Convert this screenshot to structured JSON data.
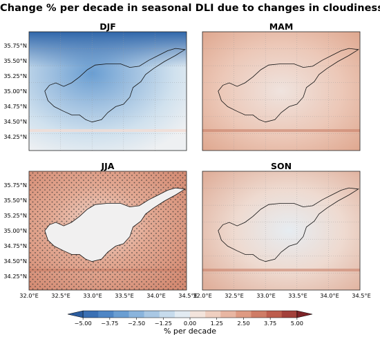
{
  "title": "Change % per decade in seasonal DLI due to changes in cloudiness",
  "panels": [
    {
      "title": "DJF",
      "col": 0,
      "row": 0,
      "tone": "blue",
      "stippled": false
    },
    {
      "title": "MAM",
      "col": 1,
      "row": 0,
      "tone": "red",
      "stippled": false
    },
    {
      "title": "JJA",
      "col": 0,
      "row": 1,
      "tone": "red-strong",
      "stippled": true
    },
    {
      "title": "SON",
      "col": 1,
      "row": 1,
      "tone": "red-mixed",
      "stippled": false
    }
  ],
  "lat_labels": [
    "35.75°N",
    "35.50°N",
    "35.25°N",
    "35.00°N",
    "34.75°N",
    "34.50°N",
    "34.25°N"
  ],
  "lon_labels": [
    "32.0°E",
    "32.5°E",
    "33.0°E",
    "33.5°E",
    "34.0°E",
    "34.5°E"
  ],
  "colorbar": {
    "ticks": [
      "−5.00",
      "−3.75",
      "−2.50",
      "−1.25",
      "0.00",
      "1.25",
      "2.50",
      "3.75",
      "5.00"
    ],
    "label": "% per decade",
    "range": [
      -5.0,
      5.0
    ],
    "colors": [
      "#2b5c9e",
      "#3a70b4",
      "#4f86c5",
      "#6a9ed2",
      "#8ab4dc",
      "#a9c8e4",
      "#c7dbec",
      "#e2ebf2",
      "#f3e4dc",
      "#efcfc0",
      "#e8b6a2",
      "#de9a82",
      "#cf7c66",
      "#bd5d4d",
      "#a3403a",
      "#7d2327"
    ]
  }
}
